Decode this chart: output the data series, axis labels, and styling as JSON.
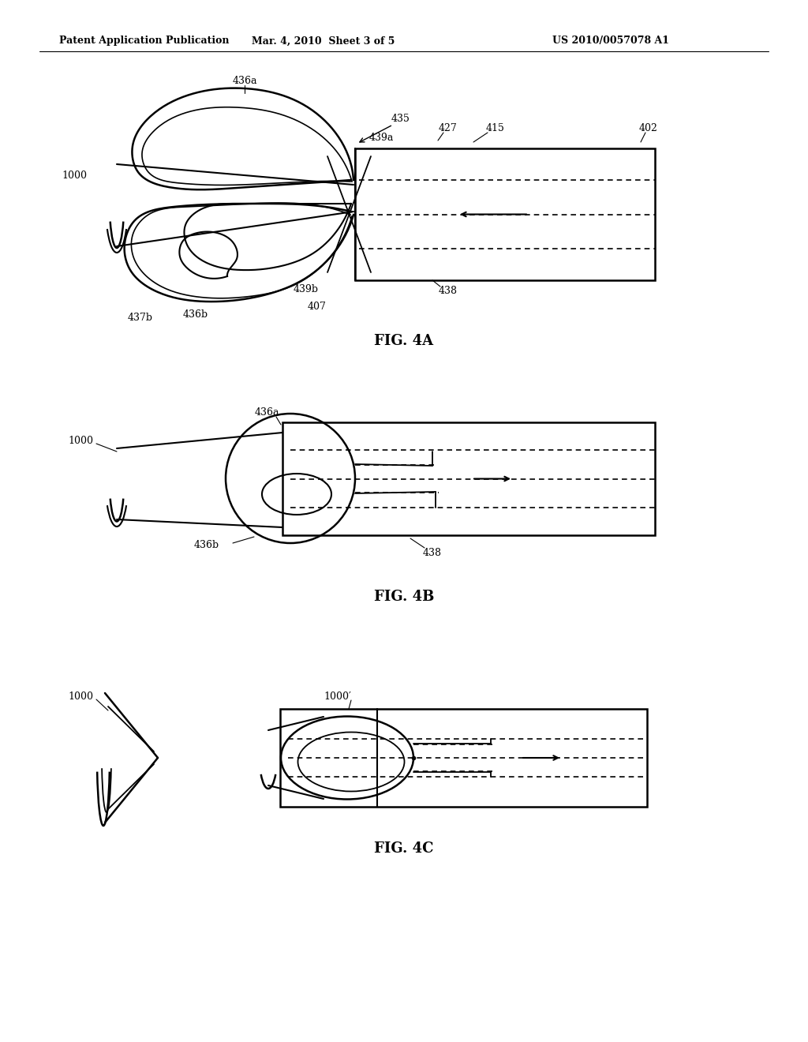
{
  "bg_color": "#ffffff",
  "header_left": "Patent Application Publication",
  "header_mid": "Mar. 4, 2010  Sheet 3 of 5",
  "header_right": "US 2010/0057078 A1",
  "fig4a_caption": "FIG. 4A",
  "fig4b_caption": "FIG. 4B",
  "fig4c_caption": "FIG. 4C"
}
